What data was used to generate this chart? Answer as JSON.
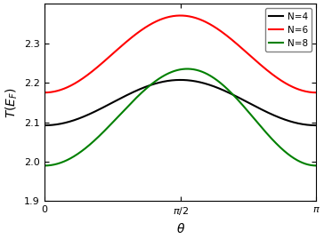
{
  "title": "",
  "xlabel": "$\\theta$",
  "ylabel": "$T(E_F)$",
  "xlim": [
    0,
    3.14159265
  ],
  "ylim": [
    1.9,
    2.4
  ],
  "yticks": [
    1.9,
    2.0,
    2.1,
    2.2,
    2.3
  ],
  "xtick_labels": [
    "0",
    "$\\pi/2$",
    "$\\pi$"
  ],
  "xtick_positions": [
    0.0,
    1.5707963,
    3.14159265
  ],
  "background_color": "#ffffff",
  "series": [
    {
      "label": "N=4",
      "color": "black",
      "A": 2.092,
      "B": 0.115,
      "asymmetry": 0.0
    },
    {
      "label": "N=6",
      "color": "red",
      "A": 2.175,
      "B": 0.195,
      "asymmetry": 0.0
    },
    {
      "label": "N=8",
      "color": "green",
      "A": 1.99,
      "B": 0.245,
      "asymmetry": -0.08
    }
  ],
  "linewidth": 1.5,
  "legend_fontsize": 7.5,
  "axis_fontsize": 10,
  "tick_fontsize": 8
}
